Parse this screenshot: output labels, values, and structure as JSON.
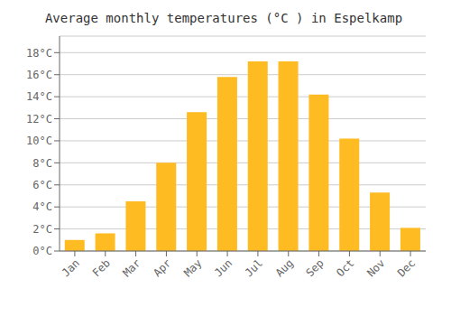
{
  "chart_data": {
    "type": "bar",
    "title": "Average monthly temperatures (°C ) in Espelkamp",
    "categories": [
      "Jan",
      "Feb",
      "Mar",
      "Apr",
      "May",
      "Jun",
      "Jul",
      "Aug",
      "Sep",
      "Oct",
      "Nov",
      "Dec"
    ],
    "values": [
      1.0,
      1.6,
      4.5,
      8.0,
      12.6,
      15.8,
      17.2,
      17.2,
      14.2,
      10.2,
      5.3,
      2.1
    ],
    "color": "#FFBB22",
    "ylim": [
      0,
      19.5
    ],
    "yticks": [
      {
        "value": 0,
        "label": "0°C"
      },
      {
        "value": 2,
        "label": "2°C"
      },
      {
        "value": 4,
        "label": "4°C"
      },
      {
        "value": 6,
        "label": "6°C"
      },
      {
        "value": 8,
        "label": "8°C"
      },
      {
        "value": 10,
        "label": "10°C"
      },
      {
        "value": 12,
        "label": "12°C"
      },
      {
        "value": 14,
        "label": "14°C"
      },
      {
        "value": 16,
        "label": "16°C"
      },
      {
        "value": 18,
        "label": "18°C"
      }
    ],
    "grid": true
  }
}
